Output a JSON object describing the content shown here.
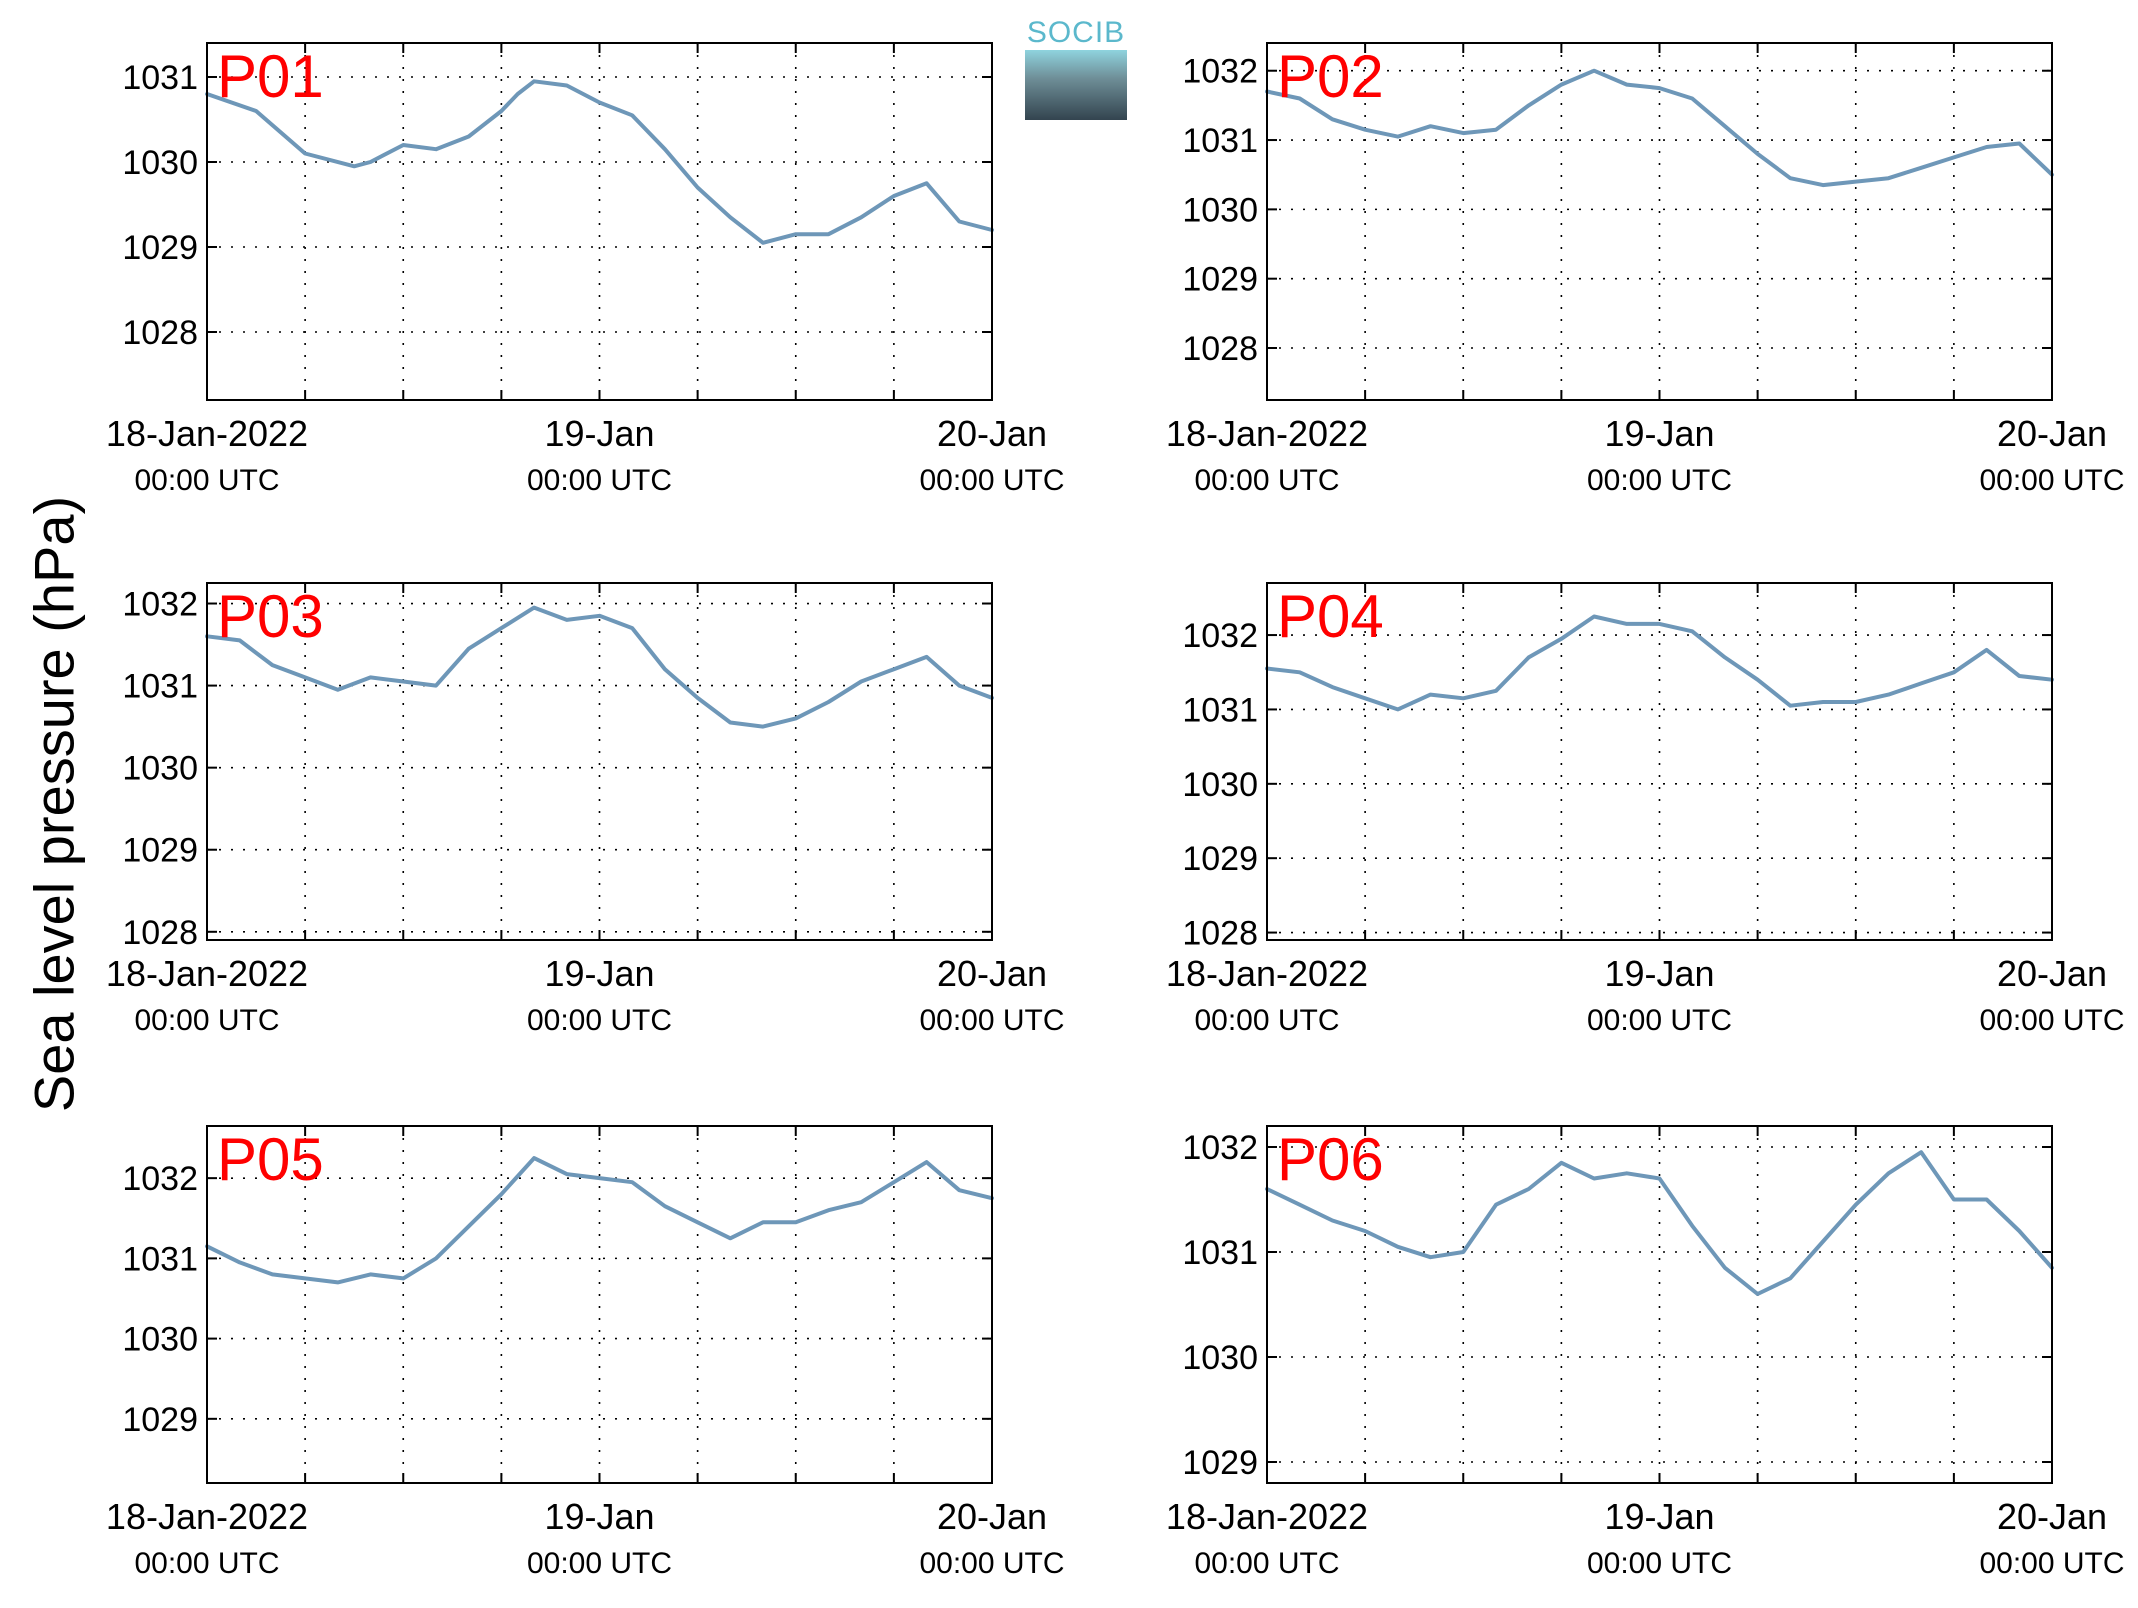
{
  "figure": {
    "ylabel": "Sea level pressure (hPa)",
    "logo_text": "SOCIB",
    "line_color": "#6e97b8",
    "label_color": "#ff0000"
  },
  "chart_data": [
    {
      "type": "line",
      "name": "P01",
      "ylim": [
        1027.2,
        1031.4
      ],
      "yticks": [
        1028,
        1029,
        1030,
        1031
      ],
      "x_range_days": [
        0,
        2
      ],
      "x_ticks": [
        {
          "label": "18-Jan-2022",
          "sublabel": "00:00 UTC"
        },
        {
          "label": "19-Jan",
          "sublabel": "00:00 UTC"
        },
        {
          "label": "20-Jan",
          "sublabel": "00:00 UTC"
        }
      ],
      "grid": true,
      "series": [
        {
          "x_hours": [
            0,
            3,
            6,
            9,
            10,
            12,
            14,
            16,
            18,
            19,
            20,
            22,
            24,
            26,
            28,
            30,
            32,
            34,
            36,
            38,
            40,
            42,
            44,
            46,
            48
          ],
          "y": [
            1030.8,
            1030.6,
            1030.1,
            1029.95,
            1030.0,
            1030.2,
            1030.15,
            1030.3,
            1030.6,
            1030.8,
            1030.95,
            1030.9,
            1030.7,
            1030.55,
            1030.15,
            1029.7,
            1029.35,
            1029.05,
            1029.15,
            1029.15,
            1029.35,
            1029.6,
            1029.75,
            1029.3,
            1029.2
          ]
        }
      ]
    },
    {
      "type": "line",
      "name": "P02",
      "ylim": [
        1027.25,
        1032.4
      ],
      "yticks": [
        1028,
        1029,
        1030,
        1031,
        1032
      ],
      "x_range_days": [
        0,
        2
      ],
      "x_ticks": [
        {
          "label": "18-Jan-2022",
          "sublabel": "00:00 UTC"
        },
        {
          "label": "19-Jan",
          "sublabel": "00:00 UTC"
        },
        {
          "label": "20-Jan",
          "sublabel": "00:00 UTC"
        }
      ],
      "grid": true,
      "series": [
        {
          "x_hours": [
            0,
            2,
            4,
            6,
            8,
            10,
            12,
            14,
            16,
            18,
            20,
            22,
            24,
            26,
            28,
            30,
            32,
            34,
            36,
            38,
            40,
            42,
            44,
            46,
            48
          ],
          "y": [
            1031.7,
            1031.6,
            1031.3,
            1031.15,
            1031.05,
            1031.2,
            1031.1,
            1031.15,
            1031.5,
            1031.8,
            1032.0,
            1031.8,
            1031.75,
            1031.6,
            1031.2,
            1030.8,
            1030.45,
            1030.35,
            1030.4,
            1030.45,
            1030.6,
            1030.75,
            1030.9,
            1030.95,
            1030.5
          ]
        }
      ]
    },
    {
      "type": "line",
      "name": "P03",
      "ylim": [
        1027.9,
        1032.25
      ],
      "yticks": [
        1028,
        1029,
        1030,
        1031,
        1032
      ],
      "x_range_days": [
        0,
        2
      ],
      "x_ticks": [
        {
          "label": "18-Jan-2022",
          "sublabel": "00:00 UTC"
        },
        {
          "label": "19-Jan",
          "sublabel": "00:00 UTC"
        },
        {
          "label": "20-Jan",
          "sublabel": "00:00 UTC"
        }
      ],
      "grid": true,
      "series": [
        {
          "x_hours": [
            0,
            2,
            4,
            6,
            8,
            10,
            12,
            14,
            16,
            18,
            20,
            22,
            24,
            26,
            28,
            30,
            32,
            34,
            36,
            38,
            40,
            42,
            44,
            46,
            48
          ],
          "y": [
            1031.6,
            1031.55,
            1031.25,
            1031.1,
            1030.95,
            1031.1,
            1031.05,
            1031.0,
            1031.45,
            1031.7,
            1031.95,
            1031.8,
            1031.85,
            1031.7,
            1031.2,
            1030.85,
            1030.55,
            1030.5,
            1030.6,
            1030.8,
            1031.05,
            1031.2,
            1031.35,
            1031.0,
            1030.85
          ]
        }
      ]
    },
    {
      "type": "line",
      "name": "P04",
      "ylim": [
        1027.9,
        1032.7
      ],
      "yticks": [
        1028,
        1029,
        1030,
        1031,
        1032
      ],
      "x_range_days": [
        0,
        2
      ],
      "x_ticks": [
        {
          "label": "18-Jan-2022",
          "sublabel": "00:00 UTC"
        },
        {
          "label": "19-Jan",
          "sublabel": "00:00 UTC"
        },
        {
          "label": "20-Jan",
          "sublabel": "00:00 UTC"
        }
      ],
      "grid": true,
      "series": [
        {
          "x_hours": [
            0,
            2,
            4,
            6,
            8,
            10,
            12,
            14,
            16,
            18,
            20,
            22,
            24,
            26,
            28,
            30,
            32,
            34,
            36,
            38,
            40,
            42,
            44,
            46,
            48
          ],
          "y": [
            1031.55,
            1031.5,
            1031.3,
            1031.15,
            1031.0,
            1031.2,
            1031.15,
            1031.25,
            1031.7,
            1031.95,
            1032.25,
            1032.15,
            1032.15,
            1032.05,
            1031.7,
            1031.4,
            1031.05,
            1031.1,
            1031.1,
            1031.2,
            1031.35,
            1031.5,
            1031.8,
            1031.45,
            1031.4
          ]
        }
      ]
    },
    {
      "type": "line",
      "name": "P05",
      "ylim": [
        1028.2,
        1032.65
      ],
      "yticks": [
        1029,
        1030,
        1031,
        1032
      ],
      "x_range_days": [
        0,
        2
      ],
      "x_ticks": [
        {
          "label": "18-Jan-2022",
          "sublabel": "00:00 UTC"
        },
        {
          "label": "19-Jan",
          "sublabel": "00:00 UTC"
        },
        {
          "label": "20-Jan",
          "sublabel": "00:00 UTC"
        }
      ],
      "grid": true,
      "series": [
        {
          "x_hours": [
            0,
            2,
            4,
            6,
            8,
            10,
            12,
            14,
            16,
            18,
            20,
            22,
            24,
            26,
            28,
            30,
            32,
            34,
            36,
            38,
            40,
            42,
            44,
            46,
            48
          ],
          "y": [
            1031.15,
            1030.95,
            1030.8,
            1030.75,
            1030.7,
            1030.8,
            1030.75,
            1031.0,
            1031.4,
            1031.8,
            1032.25,
            1032.05,
            1032.0,
            1031.95,
            1031.65,
            1031.45,
            1031.25,
            1031.45,
            1031.45,
            1031.6,
            1031.7,
            1031.95,
            1032.2,
            1031.85,
            1031.75
          ]
        }
      ]
    },
    {
      "type": "line",
      "name": "P06",
      "ylim": [
        1028.8,
        1032.2
      ],
      "yticks": [
        1029,
        1030,
        1031,
        1032
      ],
      "x_range_days": [
        0,
        2
      ],
      "x_ticks": [
        {
          "label": "18-Jan-2022",
          "sublabel": "00:00 UTC"
        },
        {
          "label": "19-Jan",
          "sublabel": "00:00 UTC"
        },
        {
          "label": "20-Jan",
          "sublabel": "00:00 UTC"
        }
      ],
      "grid": true,
      "series": [
        {
          "x_hours": [
            0,
            2,
            4,
            6,
            8,
            10,
            12,
            14,
            16,
            18,
            20,
            22,
            24,
            26,
            28,
            30,
            32,
            34,
            36,
            38,
            40,
            42,
            44,
            46,
            48
          ],
          "y": [
            1031.6,
            1031.45,
            1031.3,
            1031.2,
            1031.05,
            1030.95,
            1031.0,
            1031.45,
            1031.6,
            1031.85,
            1031.7,
            1031.75,
            1031.7,
            1031.25,
            1030.85,
            1030.6,
            1030.75,
            1031.1,
            1031.45,
            1031.75,
            1031.95,
            1031.5,
            1031.5,
            1031.2,
            1030.85
          ]
        }
      ]
    }
  ]
}
